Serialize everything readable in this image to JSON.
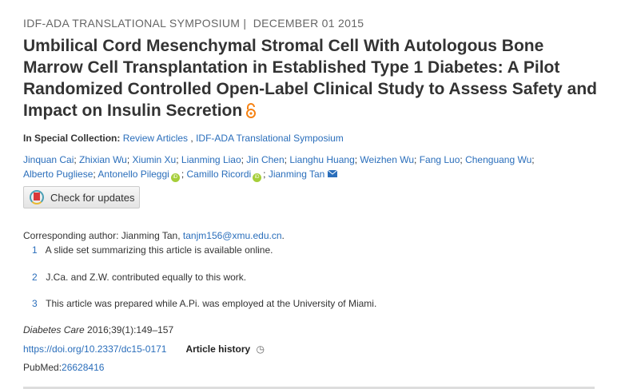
{
  "meta": {
    "section": "IDF-ADA TRANSLATIONAL SYMPOSIUM",
    "separator": "|",
    "date": "DECEMBER 01 2015"
  },
  "title": "Umbilical Cord Mesenchymal Stromal Cell With Autologous Bone Marrow Cell Transplantation in Established Type 1 Diabetes: A Pilot Randomized Controlled Open-Label Clinical Study to Assess Safety and Impact on Insulin Secretion",
  "open_access_icon": "open-lock-icon",
  "collection": {
    "label": "In Special Collection:",
    "items": [
      "Review Articles",
      "IDF-ADA Translational Symposium"
    ],
    "sep": " , "
  },
  "authors": [
    {
      "name": "Jinquan Cai"
    },
    {
      "name": "Zhixian Wu"
    },
    {
      "name": "Xiumin Xu"
    },
    {
      "name": "Lianming Liao"
    },
    {
      "name": "Jin Chen"
    },
    {
      "name": "Lianghu Huang"
    },
    {
      "name": "Weizhen Wu"
    },
    {
      "name": "Fang Luo"
    },
    {
      "name": "Chenguang Wu"
    },
    {
      "name": "Alberto Pugliese"
    },
    {
      "name": "Antonello Pileggi",
      "orcid": true
    },
    {
      "name": "Camillo Ricordi",
      "orcid": true
    },
    {
      "name": "Jianming Tan",
      "email": true
    }
  ],
  "check_updates": "Check for updates",
  "corresponding": {
    "label": "Corresponding author: Jianming Tan,",
    "email": "tanjm156@xmu.edu.cn",
    "end": "."
  },
  "footnotes": [
    {
      "n": "1",
      "text": "A slide set summarizing this article is available online."
    },
    {
      "n": "2",
      "text": "J.Ca. and Z.W. contributed equally to this work."
    },
    {
      "n": "3",
      "text": "This article was prepared while A.Pi. was employed at the University of Miami."
    }
  ],
  "citation": {
    "journal": "Diabetes Care",
    "details": " 2016;39(1):149–157"
  },
  "doi": "https://doi.org/10.2337/dc15-0171",
  "article_history": "Article history",
  "pubmed": {
    "label": "PubMed:",
    "id": "26628416"
  }
}
